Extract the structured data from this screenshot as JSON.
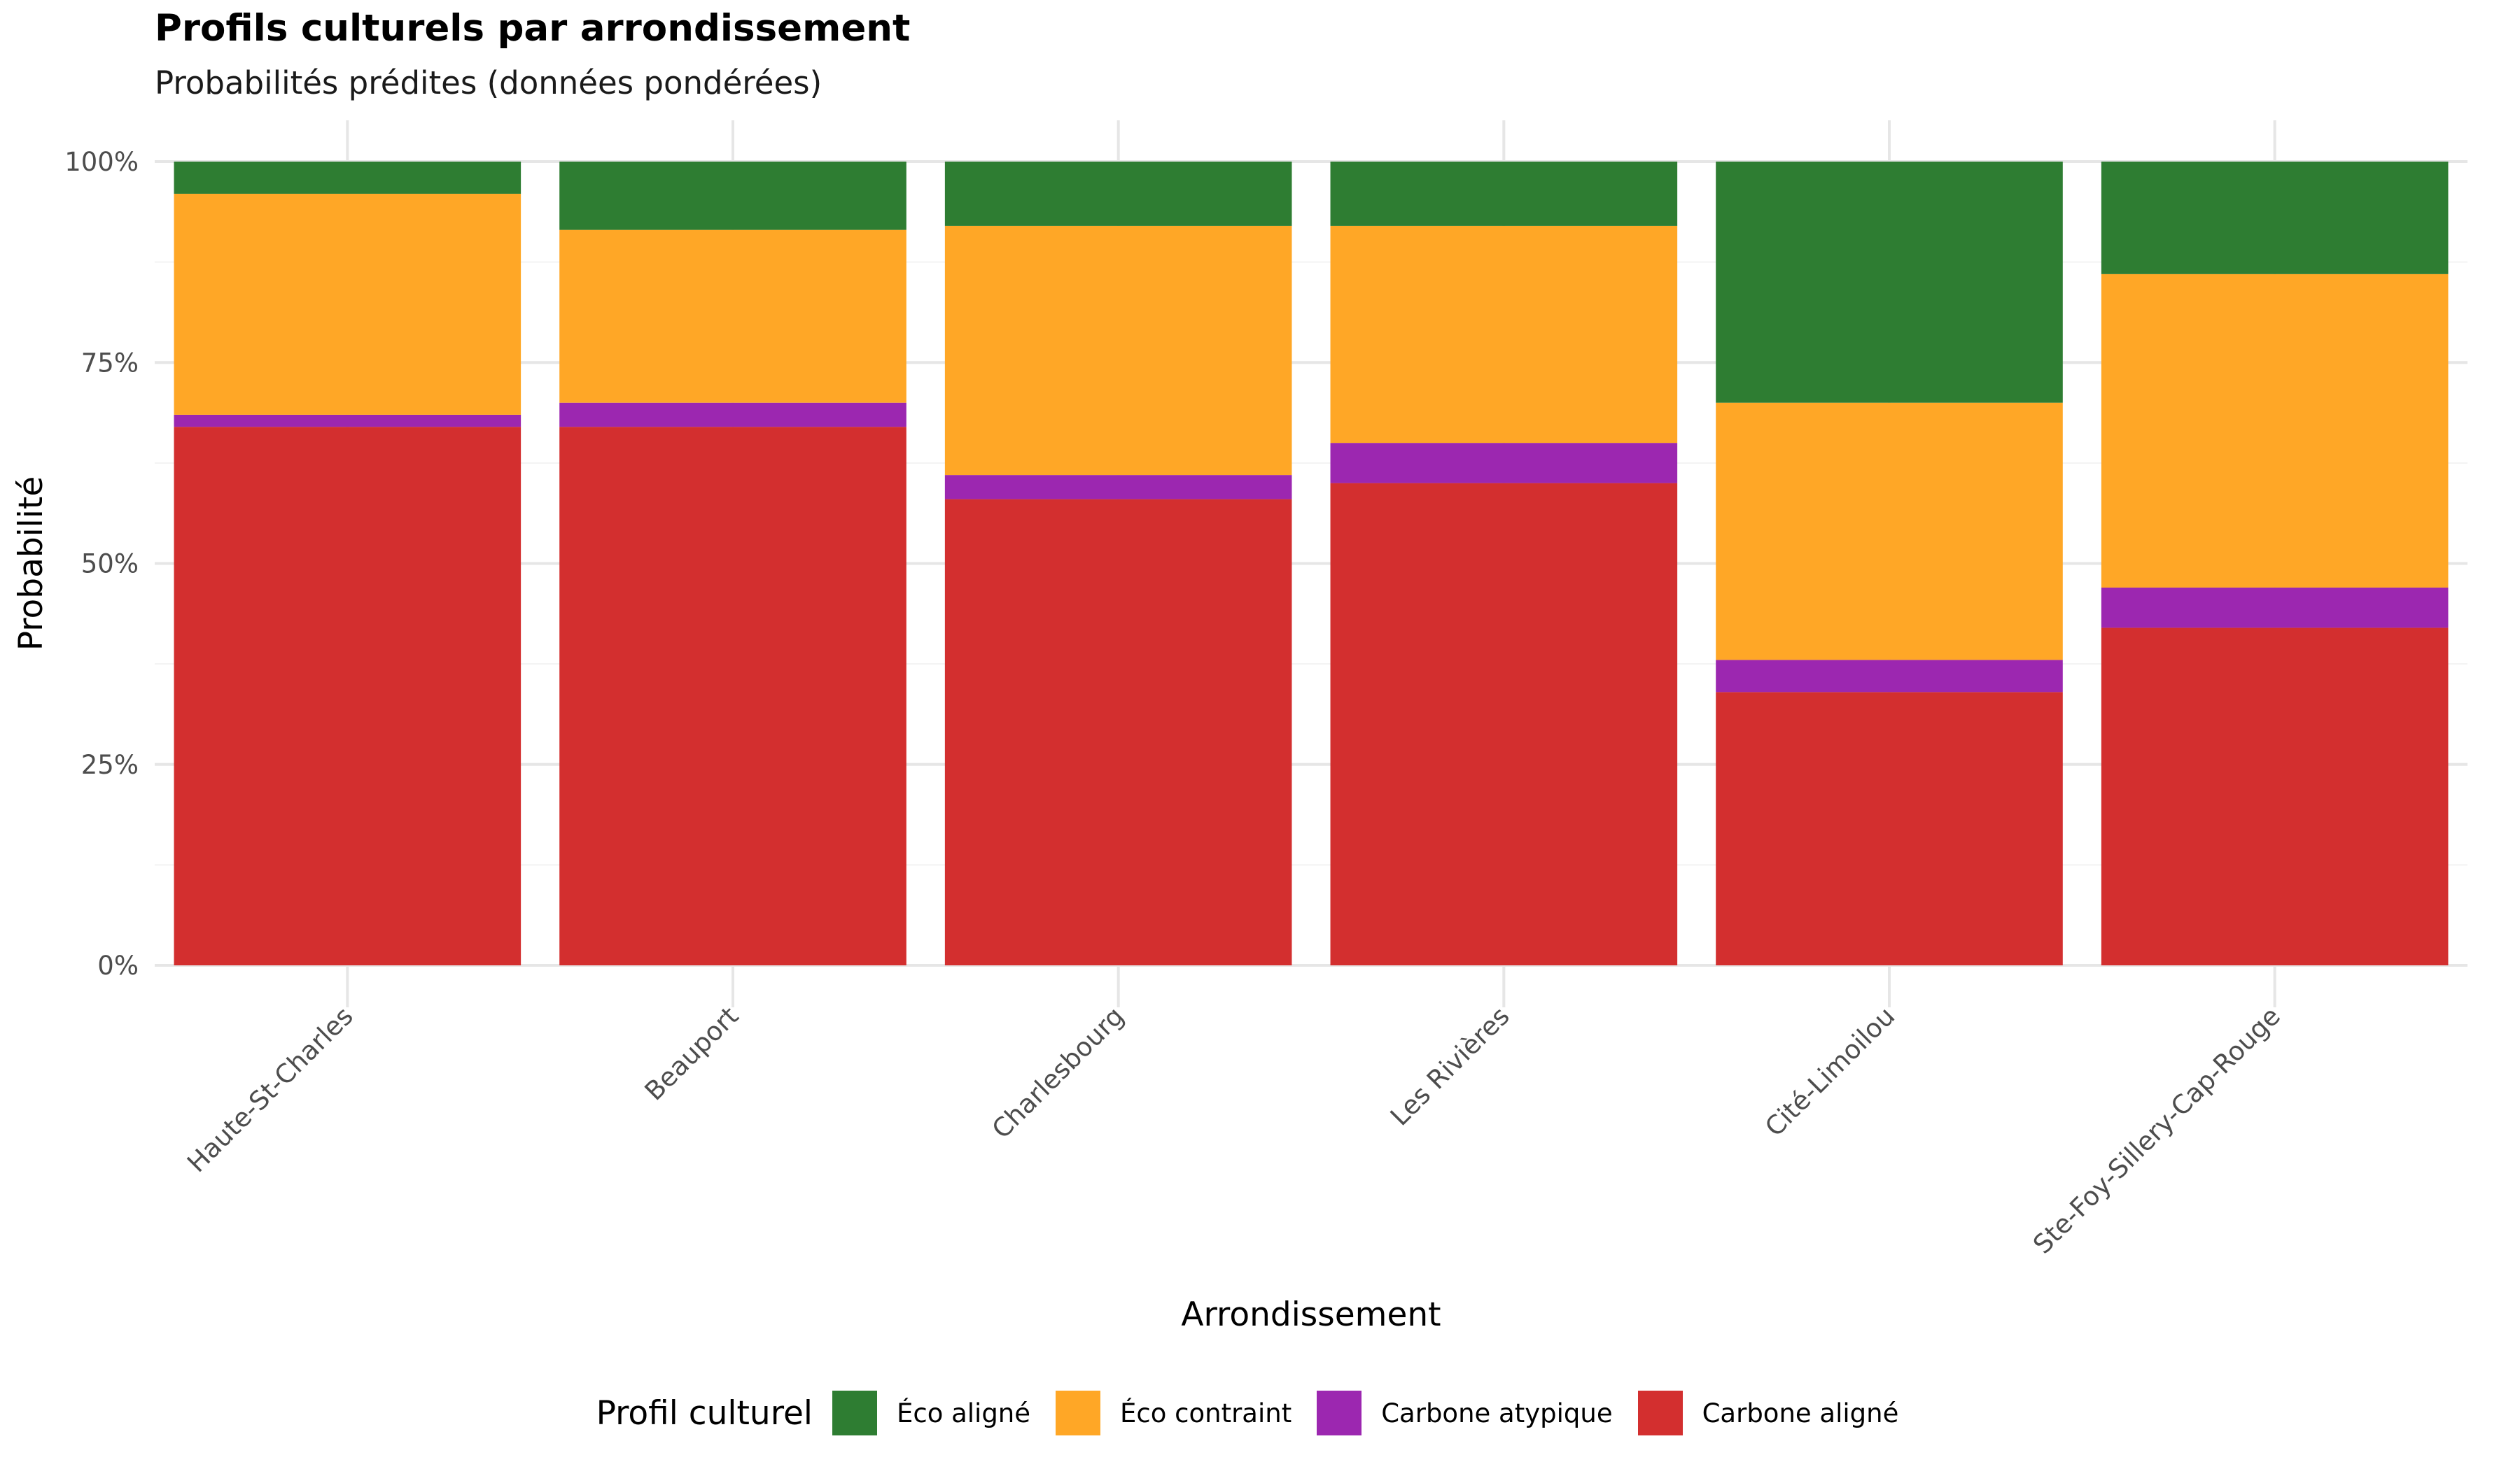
{
  "title": "Profils culturels par arrondissement",
  "subtitle": "Probabilités prédites (données pondérées)",
  "chart_data": {
    "type": "bar",
    "stacked": true,
    "xlabel": "Arrondissement",
    "ylabel": "Probabilité",
    "ylim": [
      0,
      1
    ],
    "y_ticks": [
      "0%",
      "25%",
      "50%",
      "75%",
      "100%"
    ],
    "grid": true,
    "legend_title": "Profil culturel",
    "legend_position": "bottom",
    "categories": [
      "Haute-St-Charles",
      "Beauport",
      "Charlesbourg",
      "Les Rivières",
      "Cité-Limoilou",
      "Ste-Foy-Sillery-Cap-Rouge"
    ],
    "series": [
      {
        "name": "Carbone aligné",
        "color": "#D32F2F",
        "values": [
          0.67,
          0.67,
          0.58,
          0.6,
          0.34,
          0.42
        ]
      },
      {
        "name": "Carbone atypique",
        "color": "#9C27B0",
        "values": [
          0.015,
          0.03,
          0.03,
          0.05,
          0.04,
          0.05
        ]
      },
      {
        "name": "Éco contraint",
        "color": "#FFA726",
        "values": [
          0.275,
          0.215,
          0.31,
          0.27,
          0.32,
          0.39
        ]
      },
      {
        "name": "Éco aligné",
        "color": "#2E7D32",
        "values": [
          0.04,
          0.085,
          0.08,
          0.08,
          0.3,
          0.14
        ]
      }
    ],
    "legend_order": [
      "Éco aligné",
      "Éco contraint",
      "Carbone atypique",
      "Carbone aligné"
    ]
  }
}
